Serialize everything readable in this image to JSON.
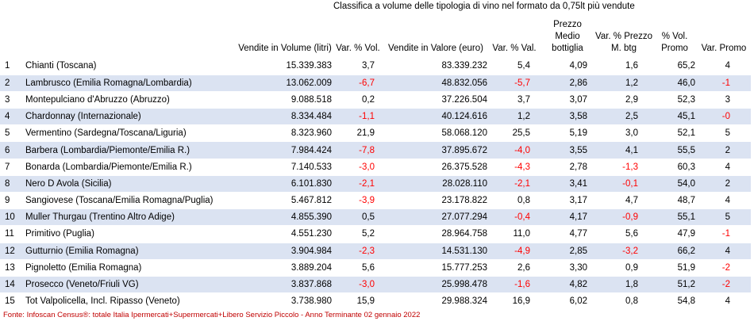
{
  "title": "Classifica a volume delle tipologia di vino nel formato da 0,75lt più vendute",
  "headers": {
    "vendite_volume": "Vendite in Volume (litri)",
    "var_vol": "Var. % Vol.",
    "vendite_valore": "Vendite in Valore (euro)",
    "var_val": "Var. % Val.",
    "prezzo_medio": "Prezzo Medio bottiglia",
    "var_prezzo": "Var. % Prezzo M. btg",
    "vol_promo": "% Vol. Promo",
    "var_promo": "Var. Promo"
  },
  "rows": [
    {
      "rank": "1",
      "name": "Chianti (Toscana)",
      "volume": "15.339.383",
      "var_vol": "3,7",
      "valore": "83.339.232",
      "var_val": "5,4",
      "prezzo": "4,09",
      "var_prezzo": "1,6",
      "promo": "65,2",
      "var_promo": "4"
    },
    {
      "rank": "2",
      "name": "Lambrusco (Emilia Romagna/Lombardia)",
      "volume": "13.062.009",
      "var_vol": "-6,7",
      "valore": "48.832.056",
      "var_val": "-5,7",
      "prezzo": "2,86",
      "var_prezzo": "1,2",
      "promo": "46,0",
      "var_promo": "-1"
    },
    {
      "rank": "3",
      "name": "Montepulciano d'Abruzzo (Abruzzo)",
      "volume": "9.088.518",
      "var_vol": "0,2",
      "valore": "37.226.504",
      "var_val": "3,7",
      "prezzo": "3,07",
      "var_prezzo": "2,9",
      "promo": "52,3",
      "var_promo": "3"
    },
    {
      "rank": "4",
      "name": "Chardonnay (Internazionale)",
      "volume": "8.334.484",
      "var_vol": "-1,1",
      "valore": "40.124.616",
      "var_val": "1,2",
      "prezzo": "3,58",
      "var_prezzo": "2,5",
      "promo": "45,1",
      "var_promo": "-0"
    },
    {
      "rank": "5",
      "name": "Vermentino (Sardegna/Toscana/Liguria)",
      "volume": "8.323.960",
      "var_vol": "21,9",
      "valore": "58.068.120",
      "var_val": "25,5",
      "prezzo": "5,19",
      "var_prezzo": "3,0",
      "promo": "52,1",
      "var_promo": "5"
    },
    {
      "rank": "6",
      "name": "Barbera (Lombardia/Piemonte/Emilia R.)",
      "volume": "7.984.424",
      "var_vol": "-7,8",
      "valore": "37.895.672",
      "var_val": "-4,0",
      "prezzo": "3,55",
      "var_prezzo": "4,1",
      "promo": "55,5",
      "var_promo": "2"
    },
    {
      "rank": "7",
      "name": "Bonarda (Lombardia/Piemonte/Emilia R.)",
      "volume": "7.140.533",
      "var_vol": "-3,0",
      "valore": "26.375.528",
      "var_val": "-4,3",
      "prezzo": "2,78",
      "var_prezzo": "-1,3",
      "promo": "60,3",
      "var_promo": "4"
    },
    {
      "rank": "8",
      "name": "Nero D Avola (Sicilia)",
      "volume": "6.101.830",
      "var_vol": "-2,1",
      "valore": "28.028.110",
      "var_val": "-2,1",
      "prezzo": "3,41",
      "var_prezzo": "-0,1",
      "promo": "54,0",
      "var_promo": "2"
    },
    {
      "rank": "9",
      "name": "Sangiovese (Toscana/Emilia Romagna/Puglia)",
      "volume": "5.467.812",
      "var_vol": "-3,9",
      "valore": "23.178.822",
      "var_val": "0,8",
      "prezzo": "3,17",
      "var_prezzo": "4,7",
      "promo": "48,7",
      "var_promo": "4"
    },
    {
      "rank": "10",
      "name": "Muller Thurgau (Trentino Altro Adige)",
      "volume": "4.855.390",
      "var_vol": "0,5",
      "valore": "27.077.294",
      "var_val": "-0,4",
      "prezzo": "4,17",
      "var_prezzo": "-0,9",
      "promo": "55,1",
      "var_promo": "5"
    },
    {
      "rank": "11",
      "name": "Primitivo (Puglia)",
      "volume": "4.551.230",
      "var_vol": "5,2",
      "valore": "28.964.758",
      "var_val": "11,0",
      "prezzo": "4,77",
      "var_prezzo": "5,6",
      "promo": "47,9",
      "var_promo": "-1"
    },
    {
      "rank": "12",
      "name": "Gutturnio (Emilia Romagna)",
      "volume": "3.904.984",
      "var_vol": "-2,3",
      "valore": "14.531.130",
      "var_val": "-4,9",
      "prezzo": "2,85",
      "var_prezzo": "-3,2",
      "promo": "66,2",
      "var_promo": "4"
    },
    {
      "rank": "13",
      "name": "Pignoletto (Emilia Romagna)",
      "volume": "3.889.204",
      "var_vol": "5,6",
      "valore": "15.777.253",
      "var_val": "2,6",
      "prezzo": "3,30",
      "var_prezzo": "0,9",
      "promo": "51,9",
      "var_promo": "-2"
    },
    {
      "rank": "14",
      "name": "Prosecco (Veneto/Friuli VG)",
      "volume": "3.837.868",
      "var_vol": "-3,0",
      "valore": "25.998.478",
      "var_val": "-1,6",
      "prezzo": "4,82",
      "var_prezzo": "1,8",
      "promo": "51,2",
      "var_promo": "-2"
    },
    {
      "rank": "15",
      "name": "Tot Valpolicella, Incl. Ripasso (Veneto)",
      "volume": "3.738.980",
      "var_vol": "15,9",
      "valore": "29.988.324",
      "var_val": "16,9",
      "prezzo": "6,02",
      "var_prezzo": "0,8",
      "promo": "54,8",
      "var_promo": "4"
    }
  ],
  "source": "Fonte: Infoscan Census®: totale Italia Ipermercati+Supermercati+Libero Servizio Piccolo - Anno Terminante 02 gennaio 2022",
  "colors": {
    "row_shade": "#dbe3f2",
    "negative": "#ff0000",
    "source_text": "#c00000"
  }
}
